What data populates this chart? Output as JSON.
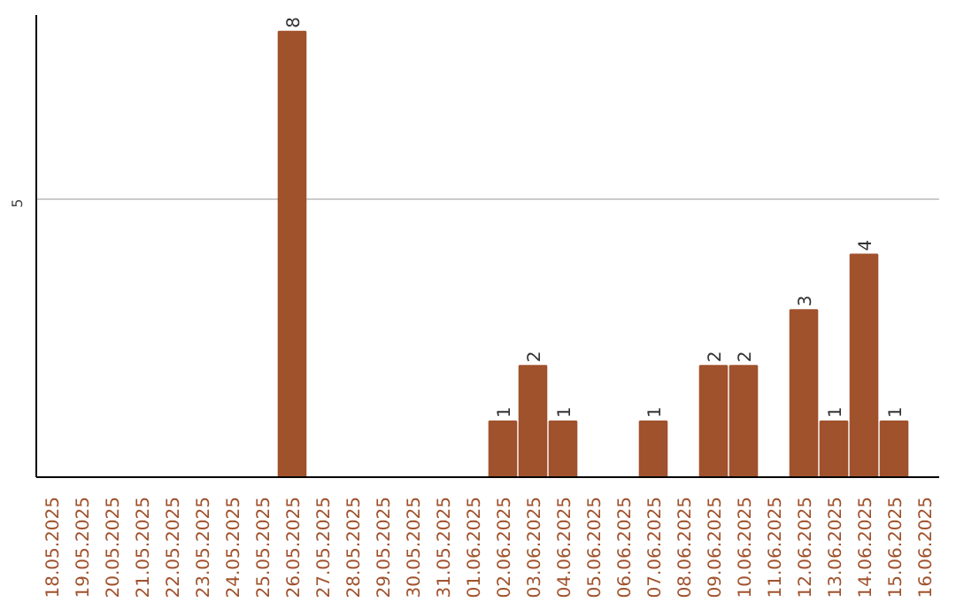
{
  "chart_data": {
    "type": "bar",
    "categories": [
      "18.05.2025",
      "19.05.2025",
      "20.05.2025",
      "21.05.2025",
      "22.05.2025",
      "23.05.2025",
      "24.05.2025",
      "25.05.2025",
      "26.05.2025",
      "27.05.2025",
      "28.05.2025",
      "29.05.2025",
      "30.05.2025",
      "31.05.2025",
      "01.06.2025",
      "02.06.2025",
      "03.06.2025",
      "04.06.2025",
      "05.06.2025",
      "06.06.2025",
      "07.06.2025",
      "08.06.2025",
      "09.06.2025",
      "10.06.2025",
      "11.06.2025",
      "12.06.2025",
      "13.06.2025",
      "14.06.2025",
      "15.06.2025",
      "16.06.2025"
    ],
    "values": [
      0,
      0,
      0,
      0,
      0,
      0,
      0,
      0,
      8,
      0,
      0,
      0,
      0,
      0,
      0,
      1,
      2,
      1,
      0,
      0,
      1,
      0,
      2,
      2,
      0,
      3,
      1,
      4,
      1,
      0
    ],
    "value_labels": [
      null,
      null,
      null,
      null,
      null,
      null,
      null,
      null,
      "8",
      null,
      null,
      null,
      null,
      null,
      null,
      "1",
      "2",
      "1",
      null,
      null,
      "1",
      null,
      "2",
      "2",
      null,
      "3",
      "1",
      "4",
      "1",
      null
    ],
    "color": "#a0522d",
    "ylim": [
      0,
      8.3
    ],
    "yticks": [
      5
    ],
    "grid": "y"
  }
}
